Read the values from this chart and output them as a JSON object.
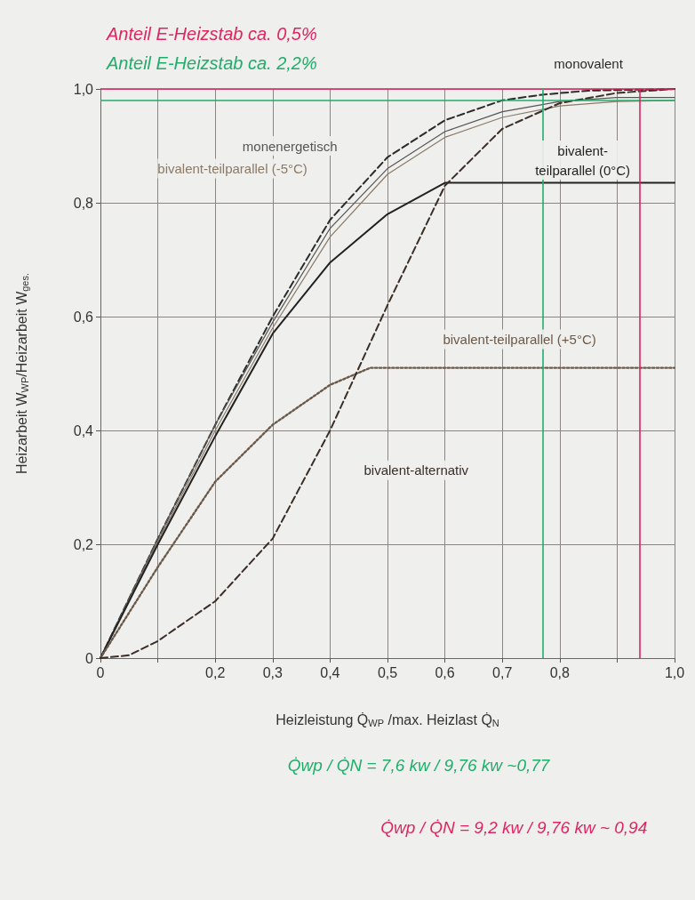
{
  "chart_data": {
    "type": "line",
    "xlabel": "Heizleistung Q̇$_{WP}$ /max. Heizlast Q̇$_{N}$",
    "ylabel": "Heizarbeit W$_{WP}$/Heizarbeit W$_{ges.}$",
    "xlim": [
      0,
      1
    ],
    "xticks": [
      0,
      {
        "value": 0.1,
        "label": null
      },
      {
        "value": 0.2,
        "label": "0,2"
      },
      {
        "value": 0.3,
        "label": "0,3"
      },
      {
        "value": 0.4,
        "label": "0,4"
      },
      {
        "value": 0.5,
        "label": "0,5"
      },
      {
        "value": 0.6,
        "label": "0,6"
      },
      {
        "value": 0.7,
        "label": "0,7"
      },
      {
        "value": 0.8,
        "label": "0,8"
      },
      {
        "value": 0.9,
        "label": null
      },
      {
        "value": 1,
        "label": "1,0"
      }
    ],
    "ylim": [
      0,
      1
    ],
    "yticks": [
      0,
      {
        "value": 0.2,
        "label": "0,2"
      },
      {
        "value": 0.4,
        "label": "0,4"
      },
      {
        "value": 0.6,
        "label": "0,6"
      },
      {
        "value": 0.8,
        "label": "0,8"
      },
      {
        "value": 1,
        "label": "1,0"
      }
    ],
    "grid": true,
    "marker": "none",
    "legend": false,
    "series": [
      {
        "name": "monovalent",
        "color": "#2b2b2b",
        "line_style": "dashed",
        "x": [
          0,
          0.1,
          0.2,
          0.3,
          0.4,
          0.5,
          0.6,
          0.7,
          0.77,
          0.85,
          1
        ],
        "values": [
          0,
          0.21,
          0.41,
          0.6,
          0.77,
          0.88,
          0.945,
          0.98,
          0.99,
          0.997,
          1
        ]
      },
      {
        "name": "monenergetisch",
        "color": "#555555",
        "line_style": "solid",
        "x": [
          0,
          0.1,
          0.2,
          0.3,
          0.4,
          0.5,
          0.6,
          0.7,
          0.8,
          0.9,
          1
        ],
        "values": [
          0,
          0.21,
          0.41,
          0.59,
          0.755,
          0.86,
          0.925,
          0.96,
          0.978,
          0.985,
          0.985
        ]
      },
      {
        "name": "bivalent-teilparallel (-5°C)",
        "color": "#8a7a66",
        "line_style": "solid",
        "x": [
          0,
          0.1,
          0.2,
          0.3,
          0.4,
          0.5,
          0.6,
          0.7,
          0.8,
          0.9,
          1
        ],
        "values": [
          0,
          0.205,
          0.4,
          0.58,
          0.74,
          0.85,
          0.915,
          0.95,
          0.97,
          0.978,
          0.98
        ]
      },
      {
        "name": "bivalent-teilparallel (0°C)",
        "color": "#222222",
        "line_style": "solid",
        "x": [
          0,
          0.1,
          0.2,
          0.3,
          0.4,
          0.5,
          0.6,
          0.7,
          0.8,
          0.9,
          1
        ],
        "values": [
          0,
          0.2,
          0.39,
          0.57,
          0.695,
          0.78,
          0.835,
          0.835,
          0.835,
          0.835,
          0.835
        ]
      },
      {
        "name": "bivalent-teilparallel (+5°C)",
        "color": "#6b5a4a",
        "line_style": "dotted",
        "x": [
          0,
          0.1,
          0.2,
          0.3,
          0.4,
          0.47,
          0.6,
          0.8,
          1
        ],
        "values": [
          0,
          0.16,
          0.31,
          0.41,
          0.48,
          0.51,
          0.51,
          0.51,
          0.51
        ]
      },
      {
        "name": "bivalent-alternativ",
        "color": "#3a2e26",
        "line_style": "dashed",
        "x": [
          0,
          0.05,
          0.1,
          0.2,
          0.3,
          0.4,
          0.5,
          0.6,
          0.7,
          0.8,
          0.9,
          1
        ],
        "values": [
          0,
          0.005,
          0.03,
          0.1,
          0.21,
          0.4,
          0.62,
          0.83,
          0.93,
          0.975,
          0.993,
          1
        ]
      }
    ],
    "ref_lines": [
      {
        "axis": "y",
        "value": 1,
        "label": "Anteil E-Heizstab ca. 0,5%",
        "color": "#e0245e"
      },
      {
        "axis": "y",
        "value": 0.98,
        "label": "Anteil E-Heizstab ca. 2,2%",
        "color": "#1fae6a"
      },
      {
        "axis": "x",
        "value": 0.77,
        "label": "Q̇wp / Q̇N = 7,6 kw / 9,76 kw ~0,77",
        "color": "#1fae6a"
      },
      {
        "axis": "x",
        "value": 0.94,
        "label": "Q̇wp / Q̇N = 9,2 kw / 9,76 kw ~ 0,94",
        "color": "#e0245e"
      }
    ]
  }
}
